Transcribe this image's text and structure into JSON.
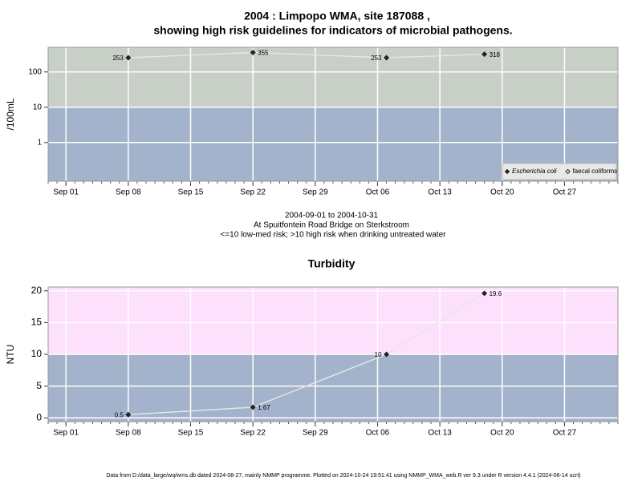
{
  "chart_data": [
    {
      "type": "line",
      "title": "2004 : Limpopo WMA, site 187088 ,",
      "subtitle": "showing high risk guidelines for indicators of microbial pathogens.",
      "y_label": "/100mL",
      "log_y": true,
      "threshold": 10,
      "color_low": "#a3b3cb",
      "color_high": "#c7cfc6",
      "x": [
        "2004-09-08",
        "2004-09-22",
        "2004-10-07",
        "2004-10-18"
      ],
      "series": [
        {
          "name": "Escherichia coli",
          "color": "#222222",
          "values": [
            253,
            355,
            253,
            318
          ]
        },
        {
          "name": "faecal coliforms",
          "color": "#222222",
          "values": [
            null,
            null,
            null,
            null
          ]
        }
      ],
      "xlim": [
        "2004-08-30",
        "2004-11-02"
      ],
      "xticks": [
        {
          "value": "2004-09-01",
          "label": "Sep 01"
        },
        {
          "value": "2004-09-08",
          "label": "Sep 08"
        },
        {
          "value": "2004-09-15",
          "label": "Sep 15"
        },
        {
          "value": "2004-09-22",
          "label": "Sep 22"
        },
        {
          "value": "2004-09-29",
          "label": "Sep 29"
        },
        {
          "value": "2004-10-06",
          "label": "Oct 06"
        },
        {
          "value": "2004-10-13",
          "label": "Oct 13"
        },
        {
          "value": "2004-10-20",
          "label": "Oct 20"
        },
        {
          "value": "2004-10-27",
          "label": "Oct 27"
        }
      ],
      "ylim": [
        0.08,
        500
      ],
      "yticks": [
        1,
        10,
        100
      ],
      "grid": true,
      "legend": "bottom right",
      "annotations": [
        "2004-09-01 to 2004-10-31",
        "At Spuitfontein Road Bridge on Sterkstroom",
        "<=10 low-med risk; >10 high risk when drinking untreated water"
      ]
    },
    {
      "type": "line",
      "title": "Turbidity",
      "y_label": "NTU",
      "log_y": false,
      "threshold": 10,
      "color_low": "#a3b3cb",
      "color_high": "#fde0fb",
      "x": [
        "2004-09-08",
        "2004-09-22",
        "2004-10-07",
        "2004-10-18"
      ],
      "series": [
        {
          "name": "Turbidity",
          "color": "#222222",
          "values": [
            0.5,
            1.67,
            10,
            19.6
          ]
        }
      ],
      "xlim": [
        "2004-08-30",
        "2004-11-02"
      ],
      "xticks": [
        {
          "value": "2004-09-01",
          "label": "Sep 01"
        },
        {
          "value": "2004-09-08",
          "label": "Sep 08"
        },
        {
          "value": "2004-09-15",
          "label": "Sep 15"
        },
        {
          "value": "2004-09-22",
          "label": "Sep 22"
        },
        {
          "value": "2004-09-29",
          "label": "Sep 29"
        },
        {
          "value": "2004-10-06",
          "label": "Oct 06"
        },
        {
          "value": "2004-10-13",
          "label": "Oct 13"
        },
        {
          "value": "2004-10-20",
          "label": "Oct 20"
        },
        {
          "value": "2004-10-27",
          "label": "Oct 27"
        }
      ],
      "ylim": [
        -0.6,
        20.6
      ],
      "yticks": [
        0,
        5,
        10,
        15,
        20
      ],
      "grid": true
    }
  ],
  "footer": "Data from D:/data_large/wq/wms.db dated 2024-08-27, mainly NMMP programme. Plotted on 2024-10-24 19:51:41 using NMMP_WMA_web.R ver 9.3 under R version 4.4.1 (2024-06-14 ucrt)"
}
